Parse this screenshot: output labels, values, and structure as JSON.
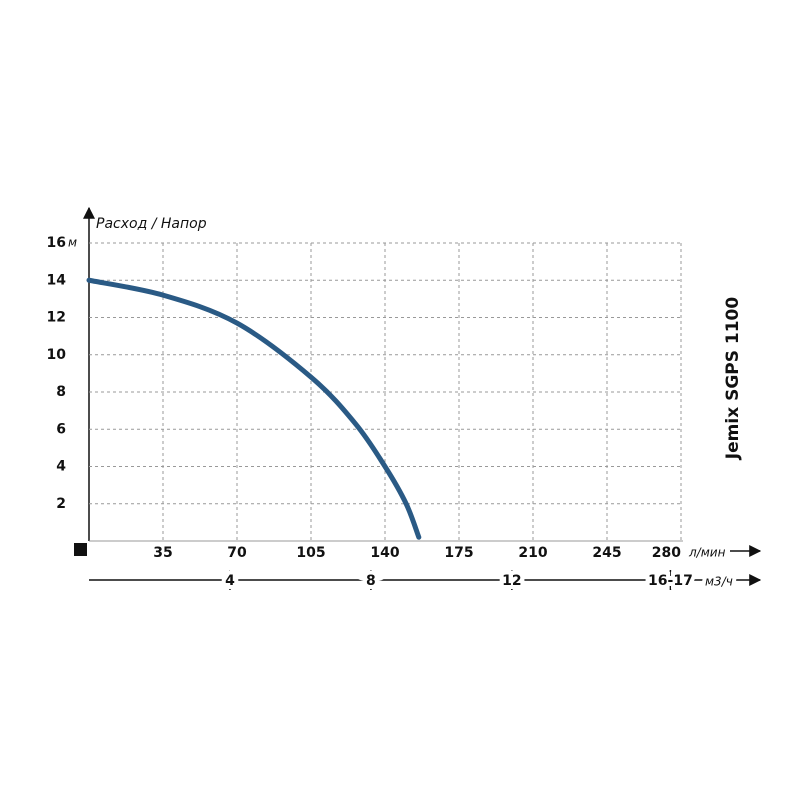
{
  "chart_data": {
    "type": "line",
    "title": "Jemix SGPS 1100",
    "y_label": "Расход / Напор",
    "y_unit": "м",
    "x_unit": "л/мин",
    "x2_unit": "м3/ч",
    "x": [
      0,
      35,
      70,
      105,
      126,
      140,
      150,
      156
    ],
    "series": [
      {
        "name": "Jemix SGPS 1100",
        "color": "#2a5a85",
        "values": [
          14,
          13.2,
          11.7,
          8.8,
          6.3,
          4.0,
          2.0,
          0.2
        ]
      }
    ],
    "xlim": [
      0,
      280
    ],
    "xticks": [
      35,
      70,
      105,
      140,
      175,
      210,
      245,
      280
    ],
    "ylim": [
      0,
      16
    ],
    "yticks": [
      2,
      4,
      6,
      8,
      10,
      12,
      14,
      16
    ],
    "x2lim": [
      0,
      16.8
    ],
    "x2ticks": [
      4,
      8,
      12,
      {
        "value": 16.5,
        "label": "16-17"
      }
    ],
    "grid": true,
    "title_color": "#2a6496"
  }
}
